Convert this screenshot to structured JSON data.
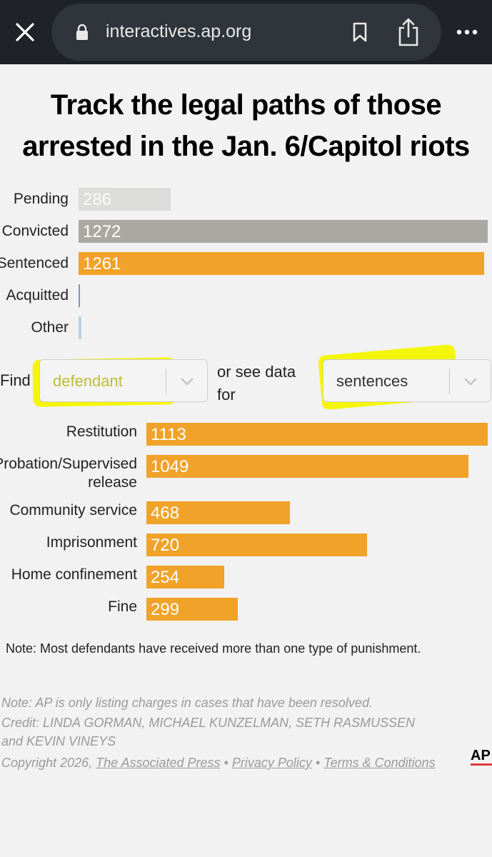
{
  "browser": {
    "url": "interactives.ap.org",
    "icons": [
      "close-icon",
      "lock-icon",
      "bookmark-icon",
      "share-icon",
      "more-icon"
    ]
  },
  "page": {
    "title_line1": "Track the legal paths of those",
    "title_line2": "arrested in the Jan. 6/Capitol riots"
  },
  "status_chart": {
    "max": 1272,
    "rows": [
      {
        "label": "Pending",
        "value": 286,
        "value_text": "286",
        "color": "#dcdcda"
      },
      {
        "label": "Convicted",
        "value": 1272,
        "value_text": "1272",
        "color": "#a9a8a2"
      },
      {
        "label": "Sentenced",
        "value": 1261,
        "value_text": "1261",
        "color": "#f0a229"
      },
      {
        "label": "Acquitted",
        "value": 0,
        "value_text": "",
        "color": "#7f95b3"
      },
      {
        "label": "Other",
        "value": 0,
        "value_text": "",
        "color": "#b6d3e6"
      }
    ]
  },
  "filters": {
    "find_label": "Find",
    "defendant_placeholder": "defendant",
    "or_see_line1": "or see data",
    "or_see_line2": "for",
    "data_select_value": "sentences"
  },
  "sentence_chart": {
    "max": 1113,
    "color": "#f0a229",
    "rows": [
      {
        "label": "Restitution",
        "label2": "",
        "value": 1113,
        "value_text": "1113"
      },
      {
        "label": "Probation/Supervised",
        "label2": "release",
        "value": 1049,
        "value_text": "1049"
      },
      {
        "label": "Community service",
        "label2": "",
        "value": 468,
        "value_text": "468"
      },
      {
        "label": "Imprisonment",
        "label2": "",
        "value": 720,
        "value_text": "720"
      },
      {
        "label": "Home confinement",
        "label2": "",
        "value": 254,
        "value_text": "254"
      },
      {
        "label": "Fine",
        "label2": "",
        "value": 299,
        "value_text": "299"
      }
    ]
  },
  "notes": {
    "chart_note": "Note: Most defendants have received more than one type of punishment.",
    "charges_note": "Note: AP is only listing charges in cases that have been resolved.",
    "credit_line1": "Credit: LINDA GORMAN, MICHAEL KUNZELMAN, SETH RASMUSSEN",
    "credit_line2": "and KEVIN VINEYS",
    "copyright": "Copyright 2026,",
    "ap_link": "The Associated Press",
    "sep": "•",
    "privacy_link": "Privacy Policy",
    "terms_link": "Terms & Conditions",
    "logo_text": "AP"
  }
}
